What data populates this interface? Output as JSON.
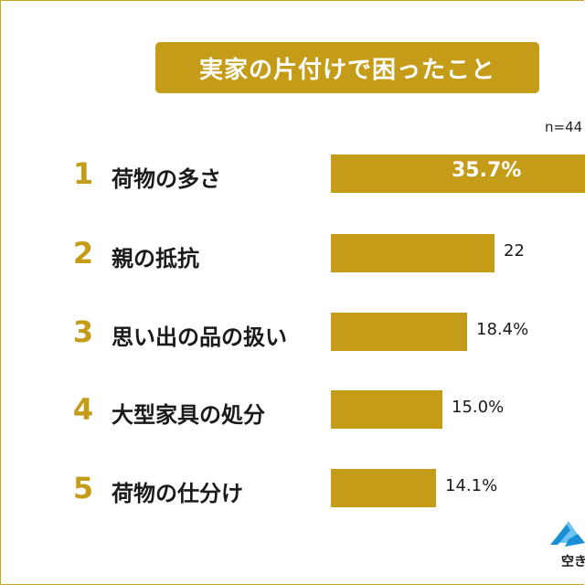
{
  "chart_data": {
    "type": "bar",
    "title": "実家の片付けで困ったこと",
    "sample_size": "n=44",
    "categories": [
      "荷物の多さ",
      "親の抵抗",
      "思い出の品の扱い",
      "大型家具の処分",
      "荷物の仕分け"
    ],
    "ranks": [
      "1",
      "2",
      "3",
      "4",
      "5"
    ],
    "values": [
      35.7,
      22,
      18.4,
      15.0,
      14.1
    ],
    "value_labels": [
      "35.7%",
      "22",
      "18.4%",
      "15.0%",
      "14.1%"
    ],
    "value_unit": "%",
    "bar_color": "#c59c18"
  },
  "brand": {
    "logo_icon": "mountain-logo-icon",
    "text": "空き",
    "colors": [
      "#1a8fd6",
      "#6ec3ef"
    ]
  }
}
